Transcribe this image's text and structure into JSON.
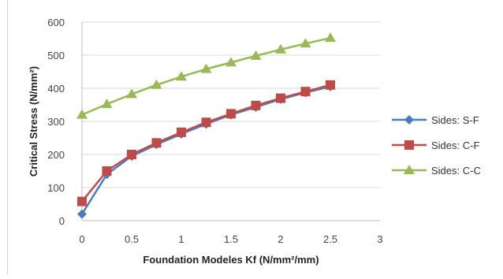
{
  "chart_data": {
    "type": "line",
    "title": "",
    "xlabel": "Foundation Modeles Kf  (N/mm²/mm)",
    "ylabel": "Critical Stress (N/mm²)",
    "xlim": [
      0,
      3
    ],
    "ylim": [
      0,
      600
    ],
    "x_ticks": [
      "0",
      "0.5",
      "1",
      "1.5",
      "2",
      "2.5",
      "3"
    ],
    "y_ticks": [
      "0",
      "100",
      "200",
      "300",
      "400",
      "500",
      "600"
    ],
    "grid": "horizontal",
    "legend_position": "right",
    "x": [
      0,
      0.25,
      0.5,
      0.75,
      1,
      1.25,
      1.5,
      1.75,
      2,
      2.25,
      2.5
    ],
    "series": [
      {
        "name": "Sides: S-F",
        "marker": "diamond",
        "color": "#4a7ebb",
        "values": [
          20,
          140,
          195,
          230,
          262,
          292,
          320,
          343,
          367,
          387,
          405
        ]
      },
      {
        "name": "Sides: C-F",
        "marker": "square",
        "color": "#be4b48",
        "values": [
          58,
          150,
          200,
          235,
          267,
          297,
          323,
          348,
          370,
          390,
          410
        ]
      },
      {
        "name": "Sides: C-C",
        "marker": "triangle",
        "color": "#98b954",
        "values": [
          320,
          352,
          382,
          410,
          435,
          458,
          478,
          498,
          517,
          535,
          552
        ]
      }
    ]
  }
}
